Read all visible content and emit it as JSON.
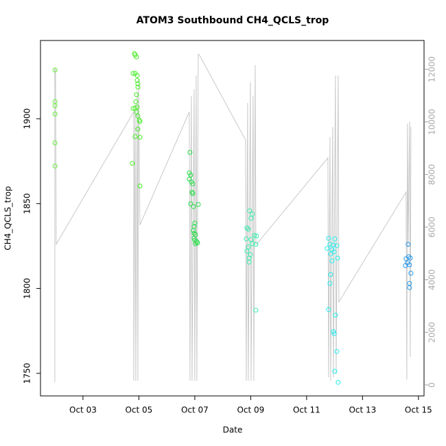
{
  "chart_data": {
    "type": "scatter",
    "title": "ATOM3 Southbound CH4_QCLS_trop",
    "x_label": "Date",
    "y_label": "CH4_QCLS_trop",
    "xlim": [
      1.48,
      15.2
    ],
    "ylim": [
      1736.7,
      1946.1
    ],
    "y2lim": [
      -417,
      13096
    ],
    "xticks": [
      {
        "value": 3,
        "label": "Oct 03"
      },
      {
        "value": 5,
        "label": "Oct 05"
      },
      {
        "value": 7,
        "label": "Oct 07"
      },
      {
        "value": 9,
        "label": "Oct 09"
      },
      {
        "value": 11,
        "label": "Oct 11"
      },
      {
        "value": 13,
        "label": "Oct 13"
      },
      {
        "value": 15,
        "label": "Oct 15"
      }
    ],
    "yticks": [
      1750,
      1800,
      1850,
      1900
    ],
    "y2ticks": [
      0,
      2000,
      4000,
      6000,
      8000,
      10000,
      12000
    ],
    "series": [
      {
        "kind": "points",
        "x": [
          2.0,
          2.0,
          2.0,
          2.0,
          2.0,
          2.0,
          4.84,
          4.865,
          4.914,
          4.791,
          4.865,
          4.939,
          4.939,
          4.963,
          4.963,
          4.914,
          4.89,
          4.791,
          4.865,
          4.939,
          4.914,
          4.963,
          5.012,
          5.037,
          4.963,
          4.865,
          5.037,
          4.767,
          5.037,
          6.828,
          6.804,
          6.853,
          6.804,
          6.877,
          6.926,
          6.902,
          6.926,
          6.853,
          7.123,
          6.951,
          7.0,
          6.975,
          6.951,
          6.975,
          7.025,
          6.975,
          7.0,
          7.074,
          7.025,
          7.098,
          8.963,
          9.061,
          9.012,
          8.865,
          8.914,
          9.135,
          9.209,
          9.012,
          8.84,
          9.184,
          9.061,
          8.914,
          8.865,
          8.988,
          8.939,
          8.939,
          9.184,
          11.785,
          12.006,
          11.834,
          11.957,
          12.08,
          11.736,
          11.908,
          11.982,
          11.859,
          12.104,
          11.908,
          11.859,
          11.834,
          11.785,
          11.957,
          11.982,
          12.031,
          12.08,
          12.006,
          12.129,
          14.632,
          14.656,
          14.558,
          14.706,
          14.607,
          14.681,
          14.534,
          14.73,
          14.681,
          14.681
        ],
        "values": [
          1928.7,
          1910.1,
          1907.7,
          1902.8,
          1885.8,
          1872.1,
          1938.4,
          1937.6,
          1936.4,
          1926.7,
          1926.7,
          1925.5,
          1922.6,
          1920.6,
          1918.6,
          1914.2,
          1910.1,
          1906.1,
          1906.1,
          1906.9,
          1904.0,
          1901.6,
          1899.2,
          1898.4,
          1893.9,
          1889.5,
          1889.1,
          1873.7,
          1860.4,
          1880.2,
          1868.1,
          1866.8,
          1864.4,
          1862.8,
          1861.6,
          1856.7,
          1855.9,
          1849.9,
          1849.5,
          1848.2,
          1838.5,
          1836.5,
          1834.1,
          1832.5,
          1831.7,
          1829.6,
          1828.4,
          1827.6,
          1826.4,
          1826.8,
          1845.8,
          1843.8,
          1841.4,
          1835.7,
          1834.9,
          1831.3,
          1830.9,
          1828.8,
          1829.2,
          1826.0,
          1826.4,
          1824.4,
          1822.0,
          1819.9,
          1817.9,
          1815.5,
          1787.2,
          1829.6,
          1829.2,
          1826.0,
          1825.6,
          1825.2,
          1823.6,
          1822.8,
          1821.6,
          1820.3,
          1817.9,
          1816.3,
          1808.2,
          1803.0,
          1787.6,
          1774.6,
          1773.4,
          1784.3,
          1762.9,
          1751.2,
          1744.7,
          1826.0,
          1818.7,
          1817.5,
          1817.9,
          1815.1,
          1813.9,
          1813.5,
          1809.0,
          1803.0,
          1800.5
        ],
        "point_colors": [
          "#66ee33",
          "#66ee33",
          "#66ee33",
          "#66ee33",
          "#66ee33",
          "#66ee33",
          "#44ee22",
          "#44ee22",
          "#44ee22",
          "#44ee22",
          "#44ee22",
          "#44ee22",
          "#44ee22",
          "#44ee22",
          "#44ee22",
          "#44ee22",
          "#44ee22",
          "#44ee22",
          "#44ee22",
          "#44ee22",
          "#44ee22",
          "#44ee22",
          "#44ee22",
          "#44ee22",
          "#44ee22",
          "#44ee22",
          "#44ee22",
          "#44ee22",
          "#44ee22",
          "#22dd44",
          "#22dd44",
          "#22dd44",
          "#22dd44",
          "#22dd44",
          "#22dd44",
          "#22dd44",
          "#22dd44",
          "#22dd44",
          "#22dd44",
          "#22dd44",
          "#22dd44",
          "#22dd44",
          "#22dd44",
          "#22dd44",
          "#22dd44",
          "#22dd44",
          "#22dd44",
          "#22dd44",
          "#22dd44",
          "#22dd44",
          "#33eeaa",
          "#33eeaa",
          "#33eeaa",
          "#33eeaa",
          "#33eeaa",
          "#33eeaa",
          "#33eeaa",
          "#33eeaa",
          "#33eeaa",
          "#33eeaa",
          "#33eeaa",
          "#33eeaa",
          "#33eeaa",
          "#33eeaa",
          "#33eeaa",
          "#33eeaa",
          "#33eeaa",
          "#22eeee",
          "#22eeee",
          "#22eeee",
          "#22eeee",
          "#22eeee",
          "#22eeee",
          "#22eeee",
          "#22eeee",
          "#22eeee",
          "#22eeee",
          "#22eeee",
          "#22eeee",
          "#22eeee",
          "#22eeee",
          "#22eeee",
          "#22eeee",
          "#22eeee",
          "#22eeee",
          "#22eeee",
          "#22eeee",
          "#2299ee",
          "#2299ee",
          "#2299ee",
          "#2299ee",
          "#2299ee",
          "#2299ee",
          "#2299ee",
          "#2299ee",
          "#2299ee",
          "#2299ee"
        ]
      },
      {
        "kind": "line",
        "axis": "y2",
        "color": "#c8c8c8",
        "x": [
          1.994,
          1.994,
          2.018,
          2.043,
          4.816,
          4.816,
          4.865,
          4.89,
          4.939,
          4.963,
          4.988,
          5.037,
          6.804,
          6.828,
          6.877,
          6.902,
          6.975,
          7.0,
          7.049,
          7.074,
          7.123,
          7.147,
          8.816,
          8.84,
          8.89,
          8.914,
          8.988,
          9.012,
          9.086,
          9.11,
          9.16,
          9.184,
          9.209,
          11.761,
          11.785,
          11.834,
          11.859,
          11.933,
          11.957,
          12.031,
          12.055,
          12.129,
          12.153,
          14.558,
          14.583,
          14.607,
          14.632,
          14.681,
          14.706,
          14.73
        ],
        "values": [
          104,
          12027,
          12027,
          5348,
          10384,
          157,
          10723,
          157,
          11114,
          157,
          11636,
          6079,
          10384,
          157,
          10984,
          157,
          11245,
          157,
          11766,
          157,
          12575,
          12575,
          9314,
          157,
          10723,
          157,
          11505,
          157,
          10984,
          157,
          12157,
          5348,
          5348,
          8636,
          287,
          9418,
          157,
          9810,
          287,
          11766,
          417,
          11766,
          3157,
          7331,
          209,
          9940,
          5244,
          10018,
          1070,
          9810
        ]
      }
    ]
  }
}
